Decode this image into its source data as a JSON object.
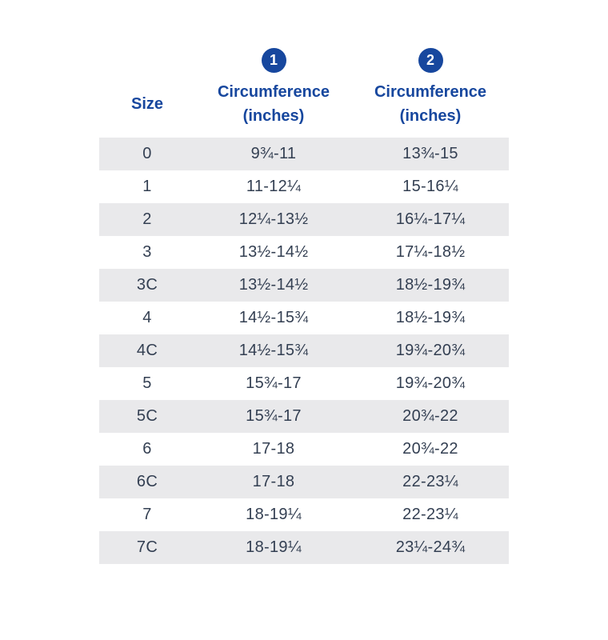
{
  "header": {
    "size_label": "Size",
    "col1_badge": "1",
    "col1_line1": "Circumference",
    "col1_line2": "(inches)",
    "col2_badge": "2",
    "col2_line1": "Circumference",
    "col2_line2": "(inches)"
  },
  "colors": {
    "header_blue": "#17479E",
    "badge_blue": "#17479E",
    "row_gray": "#E9E9EB",
    "cell_text": "#333F52"
  },
  "chart_data": {
    "type": "table",
    "columns": [
      "Size",
      "1 Circumference (inches)",
      "2 Circumference (inches)"
    ],
    "rows": [
      [
        "0",
        "9¾-11",
        "13¾-15"
      ],
      [
        "1",
        "11-12¼",
        "15-16¼"
      ],
      [
        "2",
        "12¼-13½",
        "16¼-17¼"
      ],
      [
        "3",
        "13½-14½",
        "17¼-18½"
      ],
      [
        "3C",
        "13½-14½",
        "18½-19¾"
      ],
      [
        "4",
        "14½-15¾",
        "18½-19¾"
      ],
      [
        "4C",
        "14½-15¾",
        "19¾-20¾"
      ],
      [
        "5",
        "15¾-17",
        "19¾-20¾"
      ],
      [
        "5C",
        "15¾-17",
        "20¾-22"
      ],
      [
        "6",
        "17-18",
        "20¾-22"
      ],
      [
        "6C",
        "17-18",
        "22-23¼"
      ],
      [
        "7",
        "18-19¼",
        "22-23¼"
      ],
      [
        "7C",
        "18-19¼",
        "23¼-24¾"
      ]
    ]
  }
}
